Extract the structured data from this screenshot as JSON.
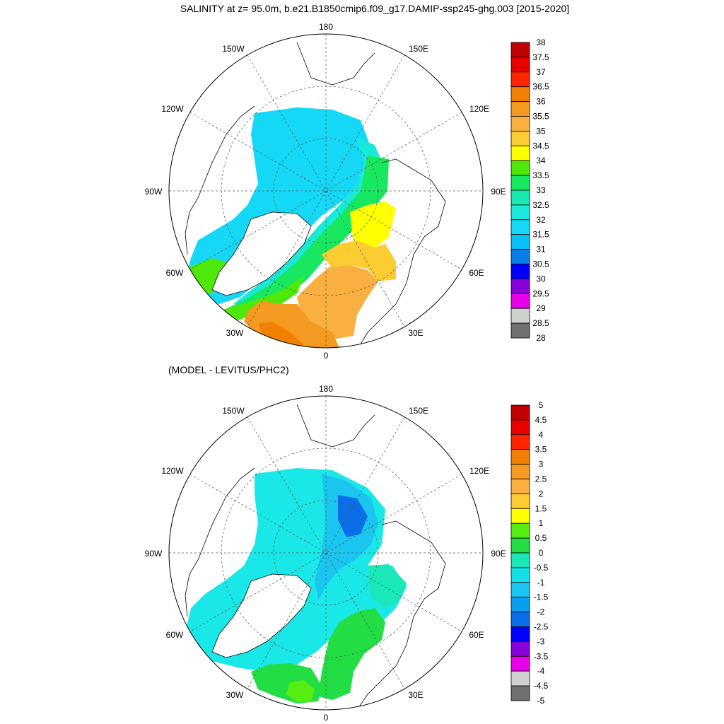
{
  "top_panel": {
    "title": "SALINITY at z=  95.0m, b.e21.B1850cmip6.f09_g17.DAMIP-ssp245-ghg.003 [2015-2020]",
    "lon_labels": [
      "180",
      "150E",
      "120E",
      "90E",
      "60E",
      "30E",
      "0",
      "30W",
      "60W",
      "90W",
      "120W",
      "150W"
    ],
    "colorbar_levels": [
      "38",
      "37.5",
      "37",
      "36.5",
      "36",
      "35.5",
      "35",
      "34.5",
      "34",
      "33.5",
      "33",
      "32.5",
      "32",
      "31.5",
      "31",
      "30.5",
      "30",
      "29.5",
      "29",
      "28.5",
      "28"
    ],
    "colorbar_colors": [
      "#c00000",
      "#e80000",
      "#ff2400",
      "#f08000",
      "#f59a20",
      "#f9b040",
      "#fccc33",
      "#ffff00",
      "#4ee80a",
      "#17e860",
      "#16e8b0",
      "#1ae8d8",
      "#14d8f5",
      "#0abff7",
      "#0a7ee8",
      "#0000ff",
      "#8800d8",
      "#e800e8",
      "#d0d0d0",
      "#707070"
    ]
  },
  "bottom_panel": {
    "title": "(MODEL - LEVITUS/PHC2)",
    "lon_labels": [
      "180",
      "150E",
      "120E",
      "90E",
      "60E",
      "30E",
      "0",
      "30W",
      "60W",
      "90W",
      "120W",
      "150W"
    ],
    "colorbar_levels": [
      "5",
      "4.5",
      "4",
      "3.5",
      "3",
      "2.5",
      "2",
      "1.5",
      "1",
      "0.5",
      "0",
      "-0.5",
      "-1",
      "-1.5",
      "-2",
      "-2.5",
      "-3",
      "-3.5",
      "-4",
      "-4.5",
      "-5"
    ],
    "colorbar_colors": [
      "#c00000",
      "#e80000",
      "#ff2400",
      "#f08000",
      "#f59a20",
      "#f9b040",
      "#fccc33",
      "#ffff00",
      "#55ee10",
      "#22dd44",
      "#1ae8b8",
      "#14e0e8",
      "#1ac6f0",
      "#0a9ef0",
      "#0a6ee8",
      "#0000ff",
      "#8800d8",
      "#e800e8",
      "#d0d0d0",
      "#707070"
    ]
  }
}
